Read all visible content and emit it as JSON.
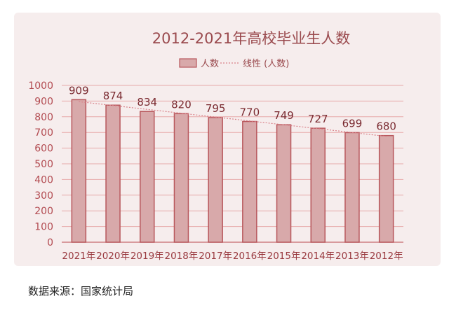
{
  "chart_data": {
    "type": "bar",
    "title": "2012-2021年高校毕业生人数",
    "legend": {
      "bar_label": "人数",
      "trend_label": "线性 (人数)",
      "placement": "top"
    },
    "categories": [
      "2021年",
      "2020年",
      "2019年",
      "2018年",
      "2017年",
      "2016年",
      "2015年",
      "2014年",
      "2013年",
      "2012年"
    ],
    "series": [
      {
        "name": "人数",
        "values": [
          909,
          874,
          834,
          820,
          795,
          770,
          749,
          727,
          699,
          680
        ]
      }
    ],
    "trendline": "linear",
    "ylim": [
      0,
      1000
    ],
    "yticks": [
      0,
      100,
      200,
      300,
      400,
      500,
      600,
      700,
      800,
      900,
      1000
    ],
    "grid": true,
    "colors": {
      "bar_fill": "#d8a9aa",
      "bar_stroke": "#b8575c",
      "grid": "#e7a9a9",
      "text": "#9a4a4e",
      "background": "#f6eded"
    }
  },
  "footer": {
    "source": "数据来源：国家统计局"
  }
}
